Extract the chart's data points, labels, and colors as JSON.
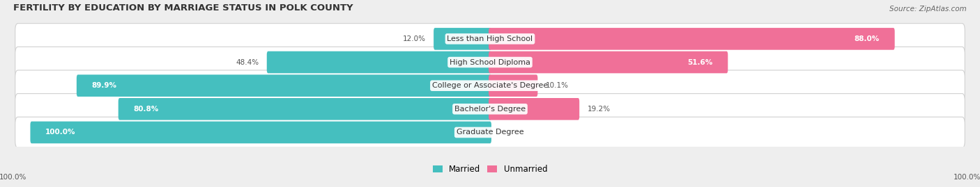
{
  "title": "FERTILITY BY EDUCATION BY MARRIAGE STATUS IN POLK COUNTY",
  "source": "Source: ZipAtlas.com",
  "categories": [
    "Less than High School",
    "High School Diploma",
    "College or Associate's Degree",
    "Bachelor's Degree",
    "Graduate Degree"
  ],
  "married": [
    12.0,
    48.4,
    89.9,
    80.8,
    100.0
  ],
  "unmarried": [
    88.0,
    51.6,
    10.1,
    19.2,
    0.0
  ],
  "married_color": "#45BFBF",
  "unmarried_color": "#F07098",
  "bg_color": "#eeeeee",
  "row_bg_color": "#f5f5f5",
  "label_fontsize": 8.0,
  "title_fontsize": 9.5,
  "source_fontsize": 7.5,
  "legend_fontsize": 8.5,
  "pct_fontsize": 7.5
}
